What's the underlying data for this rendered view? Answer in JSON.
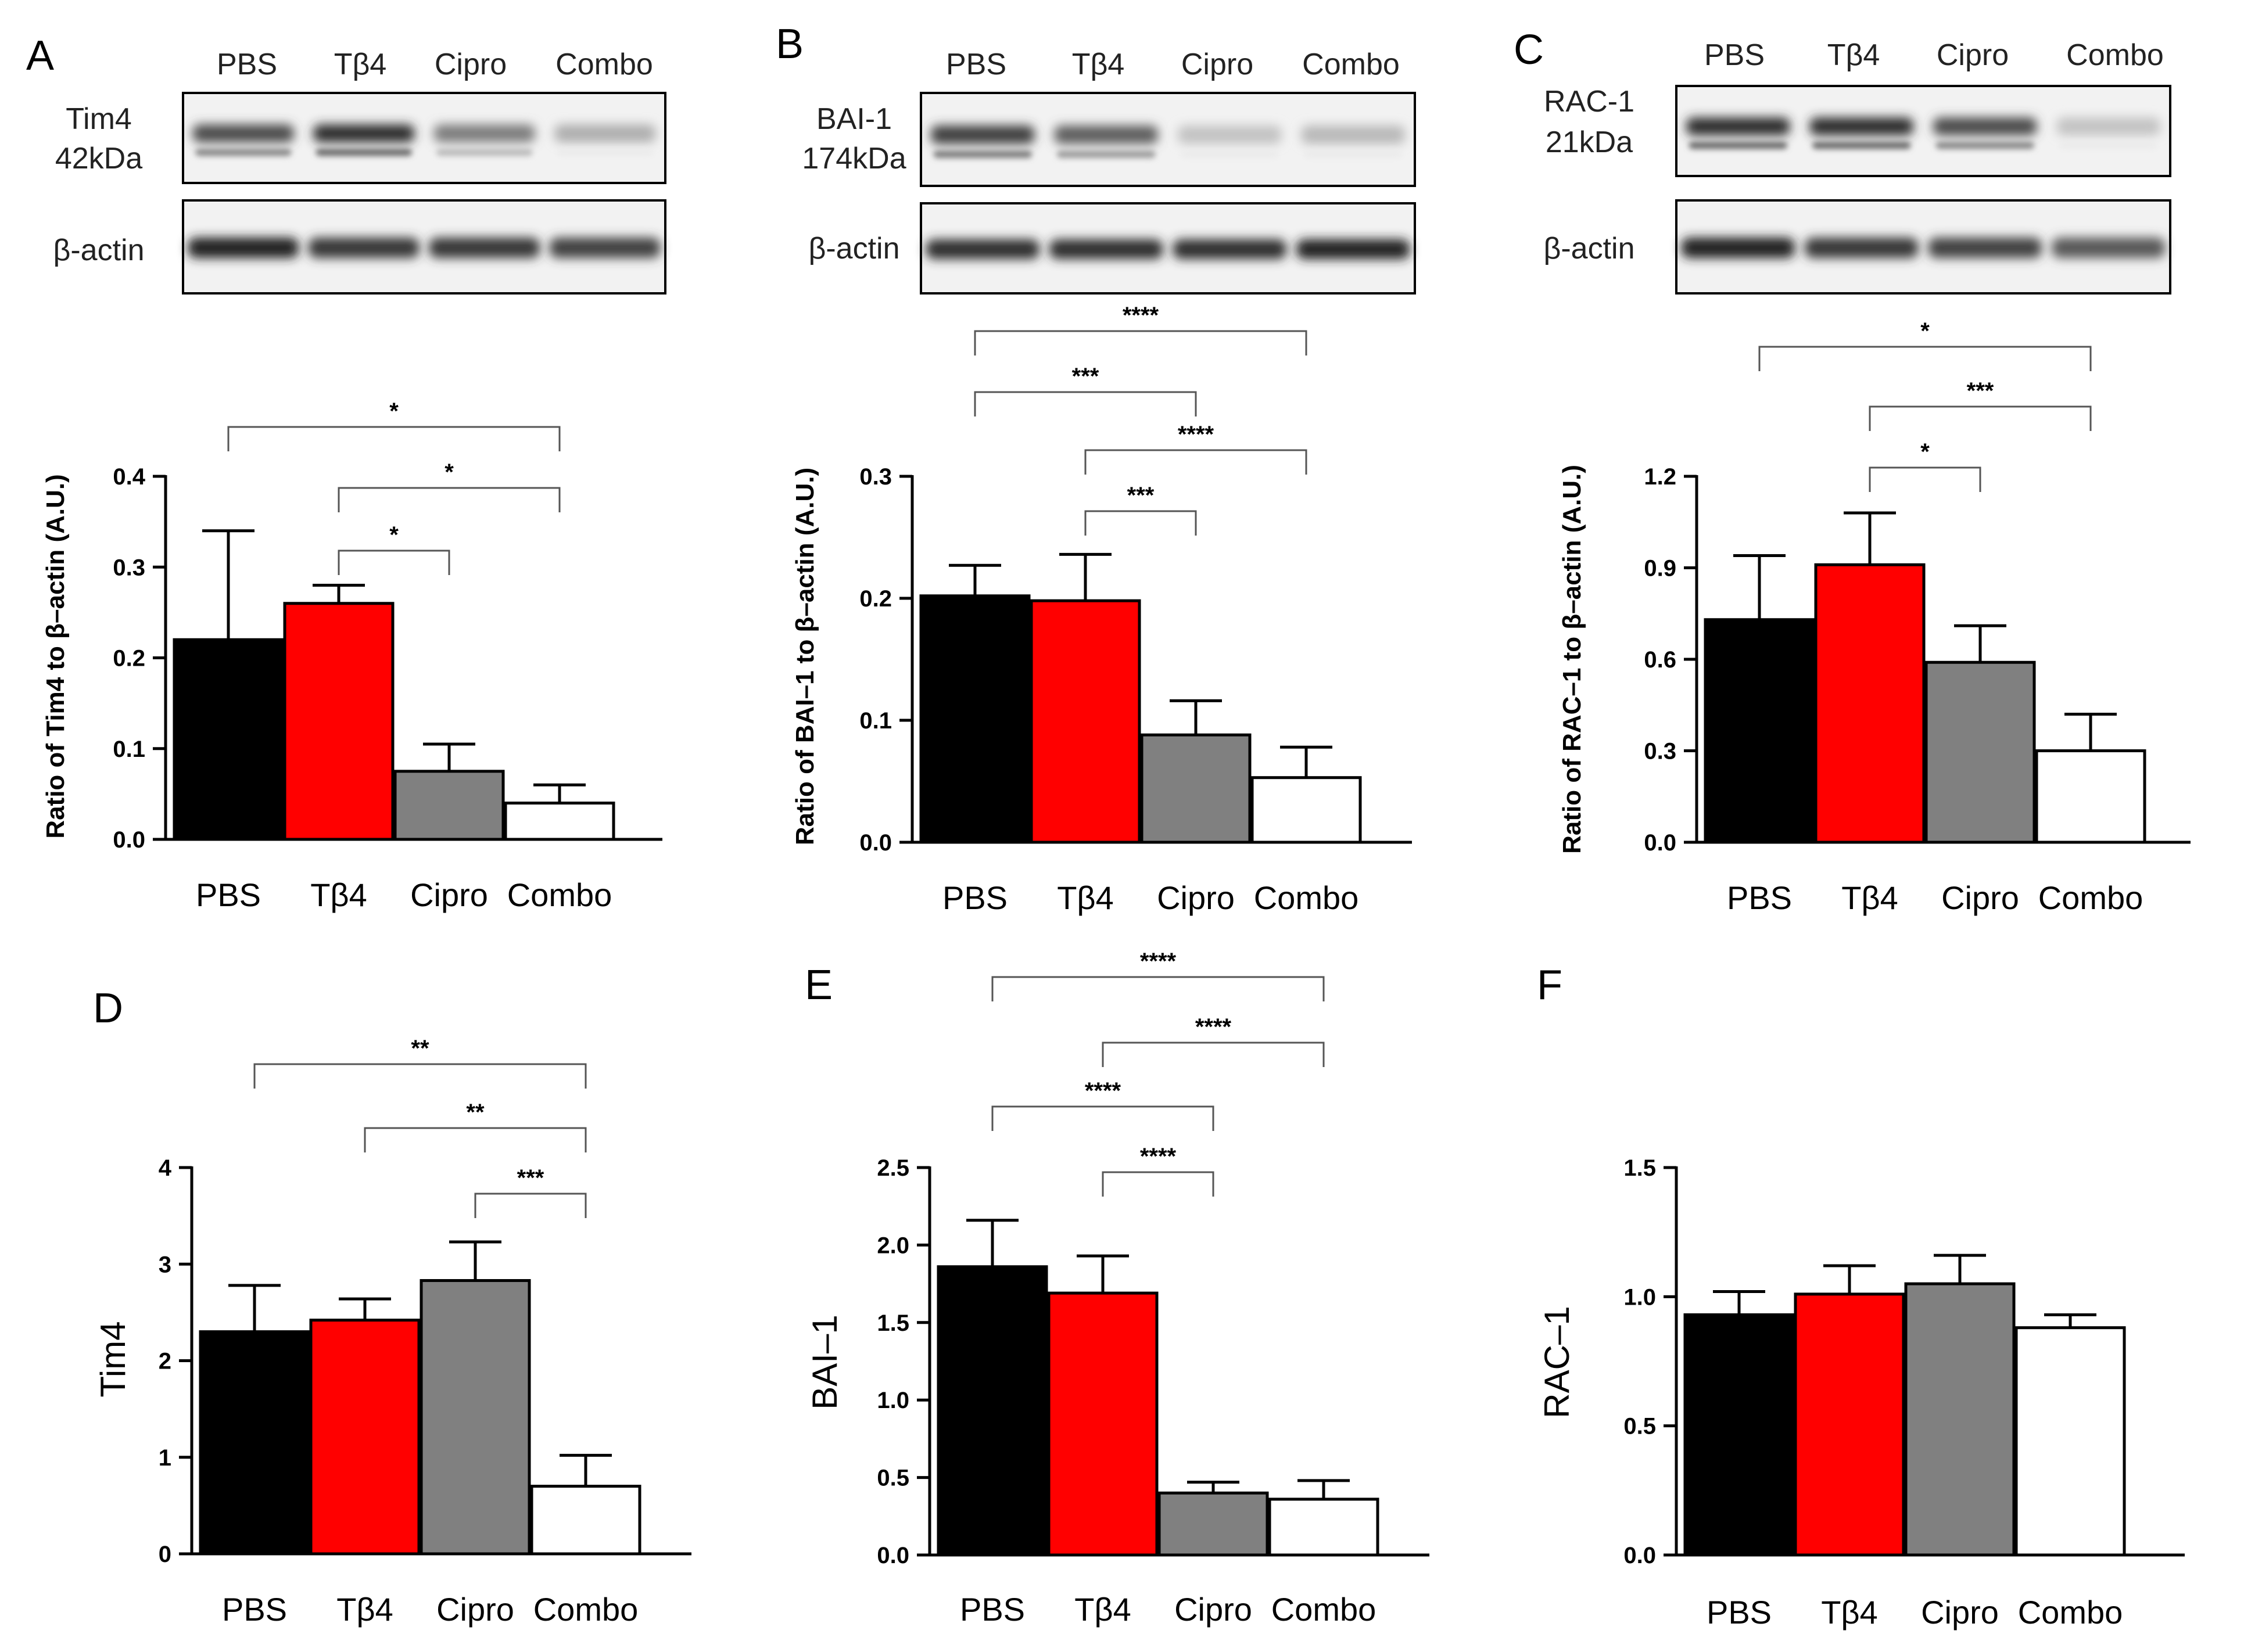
{
  "chart_data": [
    {
      "panel": "A",
      "type": "bar",
      "categories": [
        "PBS",
        "Tβ4",
        "Cipro",
        "Combo"
      ],
      "values": [
        0.22,
        0.26,
        0.075,
        0.04
      ],
      "errors": [
        0.12,
        0.02,
        0.03,
        0.02
      ],
      "ylabel": "Ratio of Tim4 to β–actin (A.U.)",
      "ylim": [
        0,
        0.4
      ],
      "yticks": [
        "0.0",
        "0.1",
        "0.2",
        "0.3",
        "0.4"
      ],
      "significance": [
        {
          "from": 1,
          "to": 2,
          "label": "*"
        },
        {
          "from": 1,
          "to": 3,
          "label": "*"
        },
        {
          "from": 0,
          "to": 3,
          "label": "*"
        }
      ]
    },
    {
      "panel": "B",
      "type": "bar",
      "categories": [
        "PBS",
        "Tβ4",
        "Cipro",
        "Combo"
      ],
      "values": [
        0.202,
        0.198,
        0.088,
        0.053
      ],
      "errors": [
        0.025,
        0.038,
        0.028,
        0.025
      ],
      "ylabel": "Ratio of BAI–1 to β–actin (A.U.)",
      "ylim": [
        0,
        0.3
      ],
      "yticks": [
        "0.0",
        "0.1",
        "0.2",
        "0.3"
      ],
      "significance": [
        {
          "from": 1,
          "to": 2,
          "label": "***"
        },
        {
          "from": 1,
          "to": 3,
          "label": "****"
        },
        {
          "from": 0,
          "to": 2,
          "label": "***"
        },
        {
          "from": 0,
          "to": 3,
          "label": "****"
        }
      ]
    },
    {
      "panel": "C",
      "type": "bar",
      "categories": [
        "PBS",
        "Tβ4",
        "Cipro",
        "Combo"
      ],
      "values": [
        0.73,
        0.91,
        0.59,
        0.3
      ],
      "errors": [
        0.21,
        0.17,
        0.12,
        0.12
      ],
      "ylabel": "Ratio of RAC–1 to β–actin (A.U.)",
      "ylim": [
        0,
        1.2
      ],
      "yticks": [
        "0.0",
        "0.3",
        "0.6",
        "0.9",
        "1.2"
      ],
      "significance": [
        {
          "from": 1,
          "to": 2,
          "label": "*"
        },
        {
          "from": 1,
          "to": 3,
          "label": "***"
        },
        {
          "from": 0,
          "to": 3,
          "label": "*"
        }
      ]
    },
    {
      "panel": "D",
      "type": "bar",
      "categories": [
        "PBS",
        "Tβ4",
        "Cipro",
        "Combo"
      ],
      "values": [
        2.3,
        2.42,
        2.83,
        0.7
      ],
      "errors": [
        0.48,
        0.22,
        0.4,
        0.32
      ],
      "ylabel": "Tim4",
      "ylim": [
        0,
        4
      ],
      "yticks": [
        "0",
        "1",
        "2",
        "3",
        "4"
      ],
      "significance": [
        {
          "from": 2,
          "to": 3,
          "label": "***"
        },
        {
          "from": 1,
          "to": 3,
          "label": "**"
        },
        {
          "from": 0,
          "to": 3,
          "label": "**"
        }
      ]
    },
    {
      "panel": "E",
      "type": "bar",
      "categories": [
        "PBS",
        "Tβ4",
        "Cipro",
        "Combo"
      ],
      "values": [
        1.86,
        1.69,
        0.4,
        0.36
      ],
      "errors": [
        0.3,
        0.24,
        0.07,
        0.12
      ],
      "ylabel": "BAI–1",
      "ylim": [
        0,
        2.5
      ],
      "yticks": [
        "0.0",
        "0.5",
        "1.0",
        "1.5",
        "2.0",
        "2.5"
      ],
      "significance": [
        {
          "from": 1,
          "to": 2,
          "label": "****"
        },
        {
          "from": 0,
          "to": 2,
          "label": "****"
        },
        {
          "from": 1,
          "to": 3,
          "label": "****"
        },
        {
          "from": 0,
          "to": 3,
          "label": "****"
        }
      ]
    },
    {
      "panel": "F",
      "type": "bar",
      "categories": [
        "PBS",
        "Tβ4",
        "Cipro",
        "Combo"
      ],
      "values": [
        0.93,
        1.01,
        1.05,
        0.88
      ],
      "errors": [
        0.09,
        0.11,
        0.11,
        0.05
      ],
      "ylabel": "RAC–1",
      "ylim": [
        0,
        1.5
      ],
      "yticks": [
        "0.0",
        "0.5",
        "1.0",
        "1.5"
      ],
      "significance": []
    }
  ],
  "blots": [
    {
      "panel": "A",
      "lanes": [
        "PBS",
        "Tβ4",
        "Cipro",
        "Combo"
      ],
      "target_label": [
        "Tim4",
        "42kDa"
      ],
      "control_label": "β-actin",
      "target_intensity": [
        0.8,
        0.95,
        0.55,
        0.3
      ],
      "control_intensity": [
        0.95,
        0.85,
        0.85,
        0.8
      ]
    },
    {
      "panel": "B",
      "lanes": [
        "PBS",
        "Tβ4",
        "Cipro",
        "Combo"
      ],
      "target_label": [
        "BAI-1",
        "174kDa"
      ],
      "control_label": "β-actin",
      "target_intensity": [
        0.85,
        0.7,
        0.2,
        0.25
      ],
      "control_intensity": [
        0.9,
        0.9,
        0.9,
        0.95
      ]
    },
    {
      "panel": "C",
      "lanes": [
        "PBS",
        "Tβ4",
        "Cipro",
        "Combo"
      ],
      "target_label": [
        "RAC-1",
        "21kDa"
      ],
      "control_label": "β-actin",
      "target_intensity": [
        0.95,
        0.95,
        0.8,
        0.2
      ],
      "control_intensity": [
        0.95,
        0.85,
        0.8,
        0.7
      ]
    }
  ],
  "colors": {
    "PBS": "#000000",
    "Tβ4": "#ff0000",
    "Cipro": "#808080",
    "Combo": "#ffffff"
  }
}
